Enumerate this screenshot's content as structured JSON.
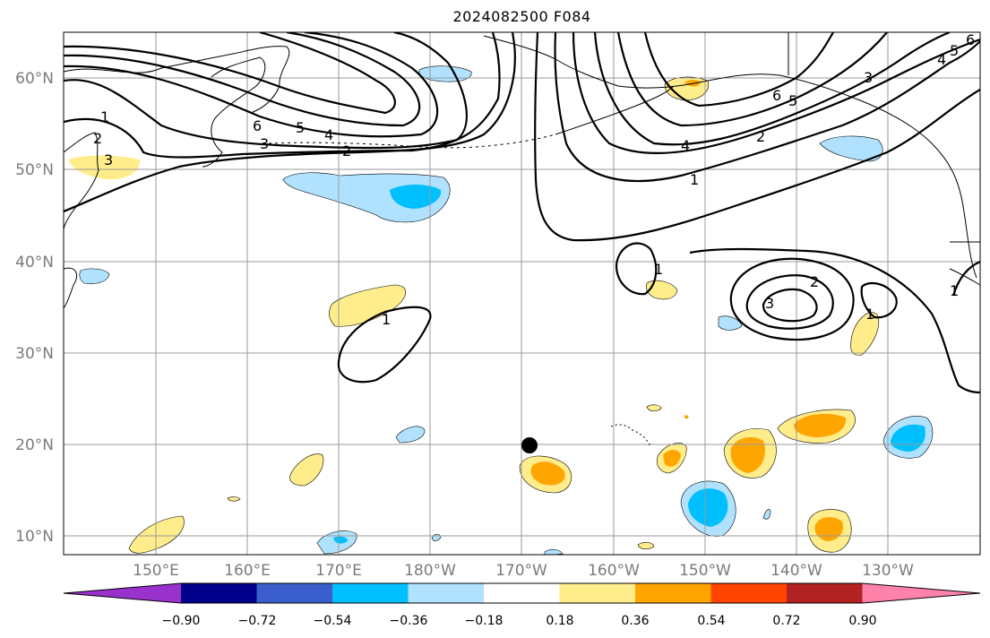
{
  "title": "2024082500 F084",
  "latitude_labels": [
    "60°N",
    "50°N",
    "40°N",
    "30°N",
    "20°N",
    "10°N"
  ],
  "longitude_labels": [
    "150°E",
    "160°E",
    "170°E",
    "180°W",
    "170°W",
    "160°W",
    "150°W",
    "140°W",
    "130°W"
  ],
  "contour_labels": [
    "1",
    "2",
    "3",
    "4",
    "5",
    "6"
  ],
  "colorbar": {
    "tick_labels": [
      "−0.90",
      "−0.72",
      "−0.54",
      "−0.36",
      "−0.18",
      "0.18",
      "0.36",
      "0.54",
      "0.72",
      "0.90"
    ],
    "colors": [
      "#9932cc",
      "#00008b",
      "#3a5fcd",
      "#00bfff",
      "#b0e2ff",
      "#ffffff",
      "#ffec8b",
      "#ffa500",
      "#ff4500",
      "#b22222",
      "#ff82ab"
    ]
  },
  "marker": {
    "name": "storm-position",
    "color": "#000000"
  }
}
